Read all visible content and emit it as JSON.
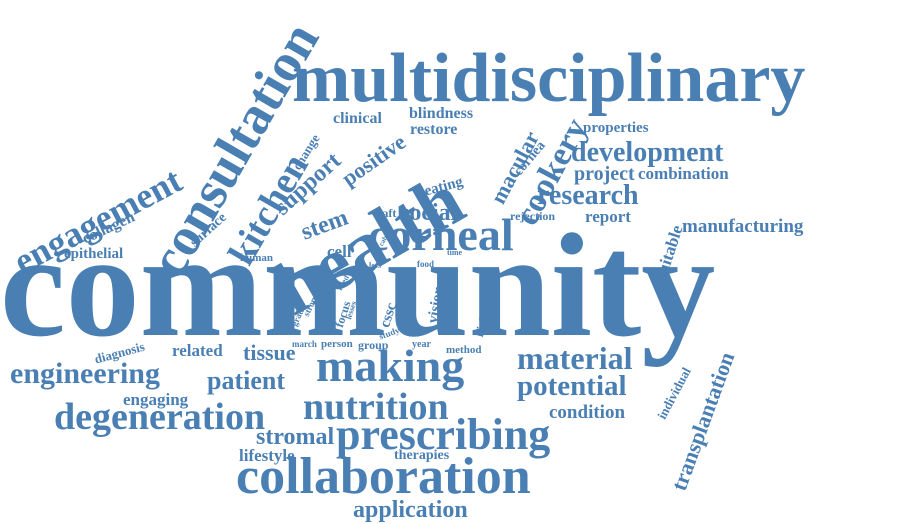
{
  "colors": {
    "word": "#4a7fb3",
    "background": "#ffffff"
  },
  "words": [
    "community",
    "multidisciplinary",
    "health",
    "corneal",
    "consultation",
    "engagement",
    "kitchen",
    "support",
    "stem",
    "positive",
    "clinical",
    "blindness",
    "restore",
    "macular",
    "cornea",
    "cookery",
    "properties",
    "development",
    "project",
    "combination",
    "research",
    "report",
    "manufacturing",
    "social",
    "eating",
    "raft",
    "rejection",
    "suitable",
    "cell",
    "human",
    "epithelial",
    "collagen",
    "surface",
    "change",
    "less",
    "food",
    "time",
    "cable",
    "need",
    "focus",
    "lesses",
    "cssc",
    "vision",
    "highlight",
    "grade",
    "stroma",
    "study",
    "diagnosis",
    "related",
    "tissue",
    "march",
    "person",
    "group",
    "year",
    "method",
    "making",
    "material",
    "engineering",
    "patient",
    "potential",
    "individual",
    "transplantation",
    "engaging",
    "nutrition",
    "condition",
    "degeneration",
    "prescribing",
    "stromal",
    "lifestyle",
    "therapies",
    "collaboration",
    "application"
  ]
}
